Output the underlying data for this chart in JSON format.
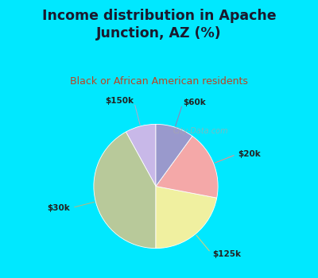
{
  "title": "Income distribution in Apache\nJunction, AZ (%)",
  "subtitle": "Black or African American residents",
  "labels": [
    "$150k",
    "$30k",
    "$125k",
    "$20k",
    "$60k"
  ],
  "sizes": [
    8,
    42,
    22,
    18,
    10
  ],
  "colors": [
    "#c8b8e8",
    "#b8c99a",
    "#f0f0a0",
    "#f4a8a8",
    "#9999cc"
  ],
  "bg_cyan": "#00e8ff",
  "bg_chart": "#e0f0e8",
  "title_color": "#1a1a2e",
  "subtitle_color": "#bb4422",
  "watermark": "City-Data.com",
  "startangle": 90,
  "label_colors": [
    "#9999cc",
    "#99aa88",
    "#d8d890",
    "#e89898",
    "#9999cc"
  ]
}
